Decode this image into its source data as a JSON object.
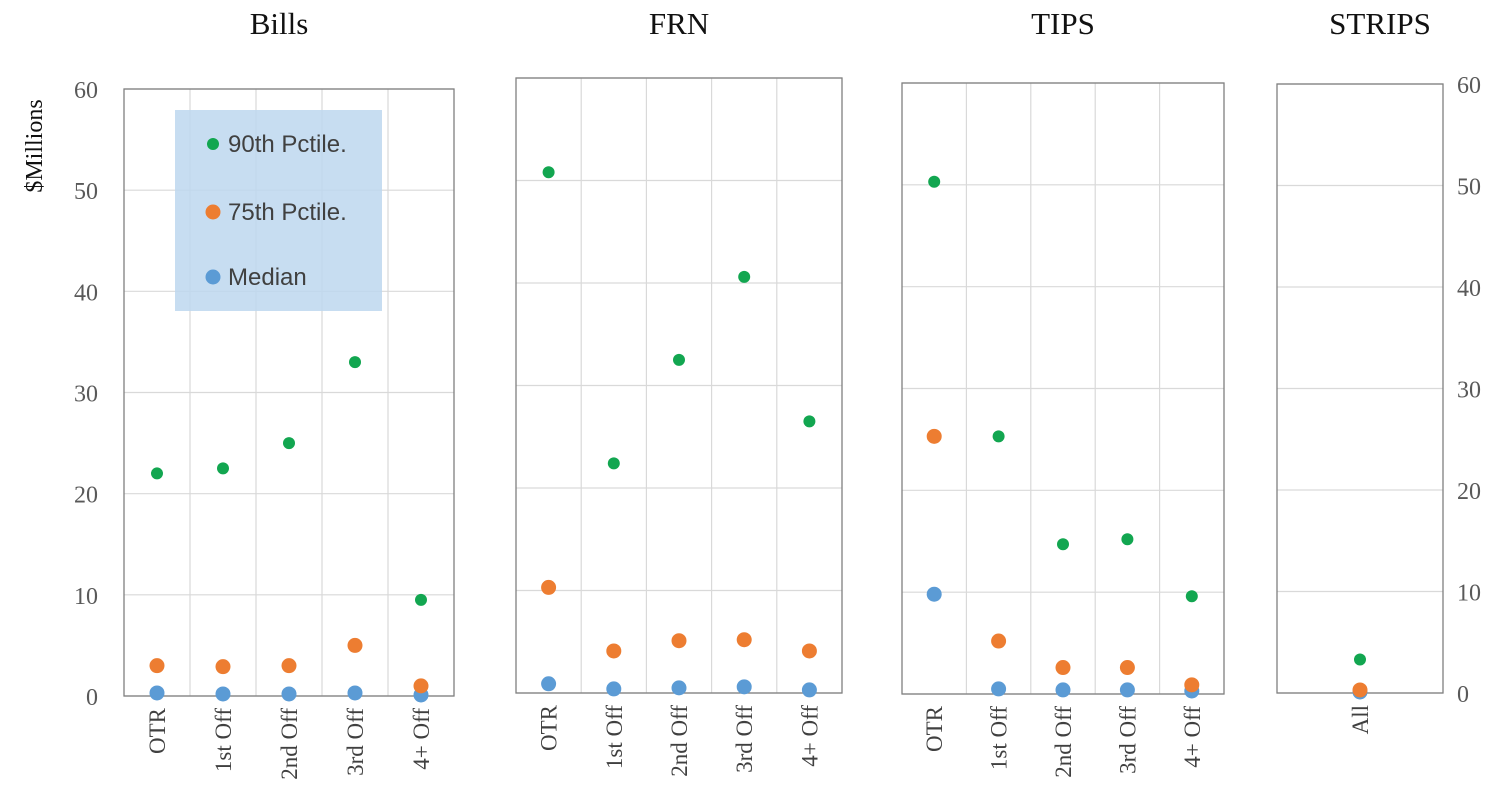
{
  "chart_data": {
    "type": "scatter",
    "ylabel": "$Millions",
    "ylim": [
      0,
      60
    ],
    "yticks": [
      0,
      10,
      20,
      30,
      40,
      50,
      60
    ],
    "grid": true,
    "legend_placement": "inside top of first panel",
    "series": [
      {
        "name": "90th Pctile.",
        "color": "#12a650"
      },
      {
        "name": "75th Pctile.",
        "color": "#ed7d31"
      },
      {
        "name": "Median",
        "color": "#5b9bd5"
      }
    ],
    "panels": [
      {
        "title": "Bills",
        "categories": [
          "OTR",
          "1st Off",
          "2nd Off",
          "3rd Off",
          "4+ Off"
        ],
        "values": {
          "90th Pctile.": [
            22,
            22.5,
            25,
            33,
            9.5
          ],
          "75th Pctile.": [
            3,
            2.9,
            3,
            5,
            1
          ],
          "Median": [
            0.3,
            0.2,
            0.2,
            0.3,
            0.1
          ]
        }
      },
      {
        "title": "FRN",
        "categories": [
          "OTR",
          "1st Off",
          "2nd Off",
          "3rd Off",
          "4+ Off"
        ],
        "values": {
          "90th Pctile.": [
            50.8,
            22.4,
            32.5,
            40.6,
            26.5
          ],
          "75th Pctile.": [
            10.3,
            4.1,
            5.1,
            5.2,
            4.1
          ],
          "Median": [
            0.9,
            0.4,
            0.5,
            0.6,
            0.3
          ]
        }
      },
      {
        "title": "TIPS",
        "categories": [
          "OTR",
          "1st Off",
          "2nd Off",
          "3rd Off",
          "4+ Off"
        ],
        "values": {
          "90th Pctile.": [
            50.3,
            25.3,
            14.7,
            15.2,
            9.6
          ],
          "75th Pctile.": [
            25.3,
            5.2,
            2.6,
            2.6,
            0.9
          ],
          "Median": [
            9.8,
            0.5,
            0.4,
            0.4,
            0.3
          ]
        }
      },
      {
        "title": "STRIPS",
        "categories": [
          "All"
        ],
        "values": {
          "90th Pctile.": [
            3.3
          ],
          "75th Pctile.": [
            0.3
          ],
          "Median": [
            0.1
          ]
        }
      }
    ]
  }
}
